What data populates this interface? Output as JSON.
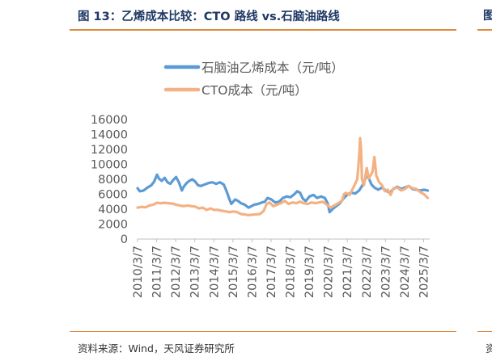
{
  "header": {
    "title": "图 13：乙烯成本比较：CTO 路线 vs.石脑油路线",
    "right_fragment": "图"
  },
  "footer": {
    "source": "资料来源：Wind，天风证券研究所",
    "right_fragment": "资"
  },
  "colors": {
    "title": "#1f3864",
    "rule": "#e08a3c",
    "series_naphtha": "#5b9bd5",
    "series_cto": "#f4b183"
  },
  "chart_data": {
    "type": "line",
    "title": "",
    "xlabel": "",
    "ylabel": "",
    "ylim": [
      0,
      16000
    ],
    "y_ticks": [
      "0",
      "2000",
      "4000",
      "6000",
      "8000",
      "10000",
      "12000",
      "14000",
      "16000"
    ],
    "x_ticks": [
      "2010/3/7",
      "2011/3/7",
      "2012/3/7",
      "2013/3/7",
      "2014/3/7",
      "2015/3/7",
      "2016/3/7",
      "2017/3/7",
      "2018/3/7",
      "2019/3/7",
      "2020/3/7",
      "2021/3/7",
      "2022/3/7",
      "2023/3/7",
      "2024/3/7",
      "2025/3/7"
    ],
    "xlim": [
      2010.18,
      2025.5
    ],
    "grid": false,
    "legend_position": "top",
    "series": [
      {
        "name": "石脑油乙烯成本（元/吨）",
        "color": "#5b9bd5",
        "points": [
          [
            2010.18,
            6800
          ],
          [
            2010.3,
            6400
          ],
          [
            2010.5,
            6500
          ],
          [
            2010.7,
            6900
          ],
          [
            2010.9,
            7200
          ],
          [
            2011.05,
            7700
          ],
          [
            2011.2,
            8600
          ],
          [
            2011.3,
            8100
          ],
          [
            2011.45,
            7800
          ],
          [
            2011.6,
            8200
          ],
          [
            2011.75,
            7600
          ],
          [
            2011.9,
            7400
          ],
          [
            2012.05,
            7900
          ],
          [
            2012.2,
            8300
          ],
          [
            2012.35,
            7600
          ],
          [
            2012.5,
            6500
          ],
          [
            2012.6,
            7000
          ],
          [
            2012.75,
            7500
          ],
          [
            2012.9,
            7800
          ],
          [
            2013.05,
            8000
          ],
          [
            2013.2,
            7700
          ],
          [
            2013.35,
            7200
          ],
          [
            2013.5,
            7100
          ],
          [
            2013.7,
            7300
          ],
          [
            2013.9,
            7500
          ],
          [
            2014.1,
            7600
          ],
          [
            2014.3,
            7400
          ],
          [
            2014.5,
            7600
          ],
          [
            2014.7,
            7300
          ],
          [
            2014.85,
            6400
          ],
          [
            2015.0,
            5300
          ],
          [
            2015.1,
            4700
          ],
          [
            2015.3,
            5300
          ],
          [
            2015.45,
            5100
          ],
          [
            2015.6,
            4800
          ],
          [
            2015.8,
            4600
          ],
          [
            2016.0,
            4200
          ],
          [
            2016.15,
            4400
          ],
          [
            2016.3,
            4600
          ],
          [
            2016.5,
            4700
          ],
          [
            2016.7,
            4900
          ],
          [
            2016.85,
            5000
          ],
          [
            2017.0,
            5500
          ],
          [
            2017.2,
            5300
          ],
          [
            2017.4,
            4900
          ],
          [
            2017.6,
            5000
          ],
          [
            2017.8,
            5500
          ],
          [
            2018.0,
            5700
          ],
          [
            2018.2,
            5600
          ],
          [
            2018.4,
            6000
          ],
          [
            2018.55,
            6400
          ],
          [
            2018.7,
            6200
          ],
          [
            2018.85,
            5400
          ],
          [
            2019.0,
            5100
          ],
          [
            2019.2,
            5700
          ],
          [
            2019.4,
            5900
          ],
          [
            2019.6,
            5500
          ],
          [
            2019.8,
            5700
          ],
          [
            2020.0,
            5500
          ],
          [
            2020.15,
            4800
          ],
          [
            2020.25,
            3600
          ],
          [
            2020.4,
            4000
          ],
          [
            2020.6,
            4400
          ],
          [
            2020.8,
            4800
          ],
          [
            2021.0,
            5500
          ],
          [
            2021.2,
            6000
          ],
          [
            2021.4,
            6200
          ],
          [
            2021.6,
            6100
          ],
          [
            2021.8,
            6500
          ],
          [
            2022.0,
            7300
          ],
          [
            2022.2,
            8500
          ],
          [
            2022.3,
            8200
          ],
          [
            2022.45,
            7300
          ],
          [
            2022.6,
            6900
          ],
          [
            2022.8,
            6600
          ],
          [
            2023.0,
            6900
          ],
          [
            2023.2,
            6500
          ],
          [
            2023.4,
            6200
          ],
          [
            2023.6,
            6700
          ],
          [
            2023.8,
            7000
          ],
          [
            2024.0,
            6700
          ],
          [
            2024.2,
            6900
          ],
          [
            2024.4,
            7100
          ],
          [
            2024.6,
            6700
          ],
          [
            2024.8,
            6600
          ],
          [
            2025.0,
            6500
          ],
          [
            2025.2,
            6600
          ],
          [
            2025.4,
            6500
          ]
        ]
      },
      {
        "name": "CTO成本（元/吨）",
        "color": "#f4b183",
        "points": [
          [
            2010.18,
            4200
          ],
          [
            2010.4,
            4300
          ],
          [
            2010.6,
            4250
          ],
          [
            2010.8,
            4500
          ],
          [
            2011.0,
            4600
          ],
          [
            2011.2,
            4850
          ],
          [
            2011.4,
            4800
          ],
          [
            2011.6,
            4850
          ],
          [
            2011.8,
            4800
          ],
          [
            2012.0,
            4750
          ],
          [
            2012.2,
            4600
          ],
          [
            2012.4,
            4500
          ],
          [
            2012.6,
            4400
          ],
          [
            2012.8,
            4500
          ],
          [
            2013.0,
            4400
          ],
          [
            2013.2,
            4350
          ],
          [
            2013.4,
            4100
          ],
          [
            2013.6,
            4200
          ],
          [
            2013.8,
            3900
          ],
          [
            2014.0,
            4100
          ],
          [
            2014.2,
            3900
          ],
          [
            2014.4,
            3900
          ],
          [
            2014.6,
            3800
          ],
          [
            2014.8,
            3700
          ],
          [
            2015.0,
            3600
          ],
          [
            2015.2,
            3700
          ],
          [
            2015.4,
            3600
          ],
          [
            2015.6,
            3350
          ],
          [
            2015.8,
            3300
          ],
          [
            2016.0,
            3200
          ],
          [
            2016.2,
            3250
          ],
          [
            2016.4,
            3300
          ],
          [
            2016.6,
            3350
          ],
          [
            2016.8,
            3800
          ],
          [
            2016.95,
            4700
          ],
          [
            2017.1,
            4900
          ],
          [
            2017.3,
            4400
          ],
          [
            2017.5,
            4600
          ],
          [
            2017.7,
            4800
          ],
          [
            2017.9,
            5100
          ],
          [
            2018.1,
            4700
          ],
          [
            2018.3,
            4900
          ],
          [
            2018.5,
            4800
          ],
          [
            2018.7,
            5000
          ],
          [
            2018.9,
            4800
          ],
          [
            2019.1,
            4700
          ],
          [
            2019.3,
            4900
          ],
          [
            2019.5,
            4800
          ],
          [
            2019.7,
            4900
          ],
          [
            2019.9,
            5000
          ],
          [
            2020.1,
            4600
          ],
          [
            2020.3,
            4200
          ],
          [
            2020.5,
            4500
          ],
          [
            2020.7,
            4800
          ],
          [
            2020.9,
            5100
          ],
          [
            2021.0,
            6000
          ],
          [
            2021.1,
            6200
          ],
          [
            2021.3,
            5900
          ],
          [
            2021.5,
            6900
          ],
          [
            2021.7,
            8000
          ],
          [
            2021.8,
            11000
          ],
          [
            2021.85,
            13500
          ],
          [
            2021.9,
            12000
          ],
          [
            2021.95,
            8000
          ],
          [
            2022.05,
            7200
          ],
          [
            2022.2,
            9500
          ],
          [
            2022.3,
            8100
          ],
          [
            2022.5,
            9000
          ],
          [
            2022.6,
            11000
          ],
          [
            2022.7,
            8500
          ],
          [
            2022.85,
            7600
          ],
          [
            2023.0,
            7200
          ],
          [
            2023.15,
            6400
          ],
          [
            2023.3,
            6600
          ],
          [
            2023.45,
            5900
          ],
          [
            2023.6,
            6800
          ],
          [
            2023.8,
            6900
          ],
          [
            2024.0,
            6500
          ],
          [
            2024.2,
            6700
          ],
          [
            2024.4,
            7100
          ],
          [
            2024.6,
            6800
          ],
          [
            2024.8,
            6700
          ],
          [
            2025.0,
            6300
          ],
          [
            2025.2,
            6000
          ],
          [
            2025.4,
            5500
          ]
        ]
      }
    ]
  }
}
